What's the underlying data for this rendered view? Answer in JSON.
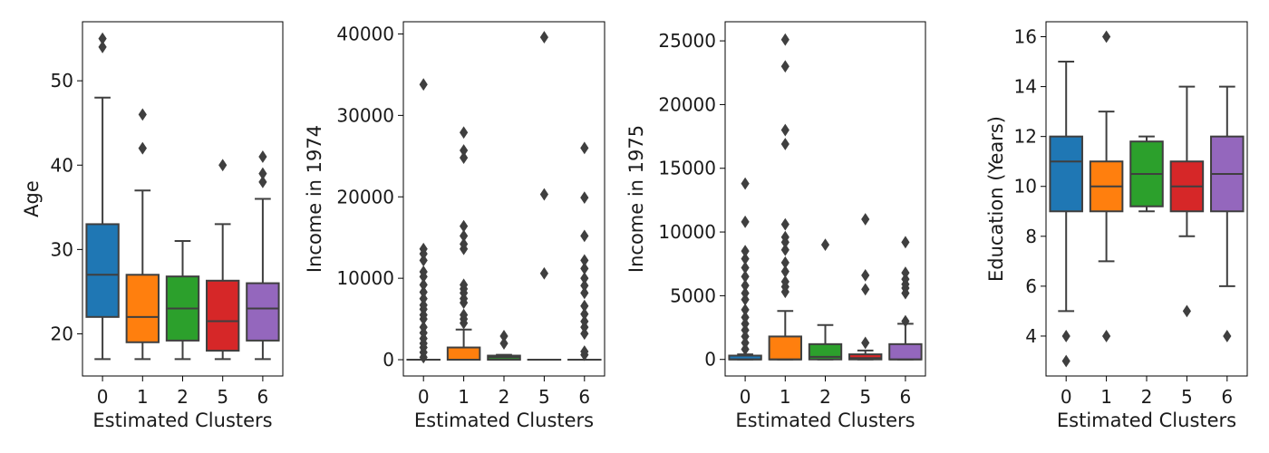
{
  "chart_data": [
    {
      "type": "box",
      "xlabel": "Estimated Clusters",
      "ylabel": "Age",
      "categories": [
        "0",
        "1",
        "2",
        "5",
        "6"
      ],
      "colors": [
        "#1f77b4",
        "#ff7f0e",
        "#2ca02c",
        "#d62728",
        "#9467bd"
      ],
      "ylim": [
        15,
        57
      ],
      "yticks": [
        20,
        30,
        40,
        50
      ],
      "ytick_labels": [
        "20",
        "30",
        "40",
        "50"
      ],
      "boxes": [
        {
          "whislo": 17,
          "q1": 22,
          "med": 27,
          "q3": 33,
          "whishi": 48,
          "fliers": [
            54,
            55
          ]
        },
        {
          "whislo": 17,
          "q1": 19,
          "med": 22,
          "q3": 27,
          "whishi": 37,
          "fliers": [
            42,
            42,
            46
          ]
        },
        {
          "whislo": 17,
          "q1": 19.2,
          "med": 23,
          "q3": 26.8,
          "whishi": 31,
          "fliers": []
        },
        {
          "whislo": 17,
          "q1": 18,
          "med": 21.5,
          "q3": 26.3,
          "whishi": 33,
          "fliers": [
            40
          ]
        },
        {
          "whislo": 17,
          "q1": 19.2,
          "med": 23,
          "q3": 26,
          "whishi": 36,
          "fliers": [
            38,
            39,
            41
          ]
        }
      ]
    },
    {
      "type": "box",
      "xlabel": "Estimated Clusters",
      "ylabel": "Income in 1974",
      "categories": [
        "0",
        "1",
        "2",
        "5",
        "6"
      ],
      "colors": [
        "#1f77b4",
        "#ff7f0e",
        "#2ca02c",
        "#d62728",
        "#9467bd"
      ],
      "ylim": [
        -2000,
        41500
      ],
      "yticks": [
        0,
        10000,
        20000,
        30000,
        40000
      ],
      "ytick_labels": [
        "0",
        "10000",
        "20000",
        "30000",
        "40000"
      ],
      "boxes": [
        {
          "whislo": 0,
          "q1": 0,
          "med": 0,
          "q3": 0,
          "whishi": 0,
          "fliers": [
            300,
            900,
            1500,
            2000,
            2600,
            3300,
            4000,
            5000,
            5500,
            6200,
            6700,
            7500,
            8300,
            9200,
            10200,
            10800,
            12200,
            13000,
            13600,
            33800
          ]
        },
        {
          "whislo": 0,
          "q1": 0,
          "med": 0,
          "q3": 1500,
          "whishi": 3700,
          "fliers": [
            4500,
            5000,
            5500,
            7000,
            7500,
            8200,
            8700,
            9200,
            13600,
            14200,
            15200,
            16400,
            24800,
            25700,
            27900
          ]
        },
        {
          "whislo": 0,
          "q1": 0,
          "med": 300,
          "q3": 500,
          "whishi": 600,
          "fliers": [
            2000,
            2900
          ]
        },
        {
          "whislo": 0,
          "q1": 0,
          "med": 0,
          "q3": 0,
          "whishi": 0,
          "fliers": [
            10600,
            20300,
            39600
          ]
        },
        {
          "whislo": 0,
          "q1": 0,
          "med": 0,
          "q3": 0,
          "whishi": 0,
          "fliers": [
            600,
            1000,
            3200,
            4000,
            4700,
            5600,
            6600,
            8200,
            9100,
            10000,
            11200,
            12200,
            15200,
            19900,
            26000
          ]
        }
      ]
    },
    {
      "type": "box",
      "xlabel": "Estimated Clusters",
      "ylabel": "Income in 1975",
      "categories": [
        "0",
        "1",
        "2",
        "5",
        "6"
      ],
      "colors": [
        "#1f77b4",
        "#ff7f0e",
        "#2ca02c",
        "#d62728",
        "#9467bd"
      ],
      "ylim": [
        -1300,
        26500
      ],
      "yticks": [
        0,
        5000,
        10000,
        15000,
        20000,
        25000
      ],
      "ytick_labels": [
        "0",
        "5000",
        "10000",
        "15000",
        "20000",
        "25000"
      ],
      "boxes": [
        {
          "whislo": 0,
          "q1": 0,
          "med": 0,
          "q3": 300,
          "whishi": 400,
          "fliers": [
            800,
            1300,
            1800,
            2300,
            2800,
            3300,
            3900,
            4700,
            5200,
            5800,
            6500,
            7200,
            7900,
            8500,
            10800,
            13800
          ]
        },
        {
          "whislo": 0,
          "q1": 0,
          "med": 0,
          "q3": 1800,
          "whishi": 3800,
          "fliers": [
            5300,
            5700,
            6100,
            6900,
            7600,
            8600,
            9200,
            9600,
            10600,
            16900,
            18000,
            23000,
            25100
          ]
        },
        {
          "whislo": 0,
          "q1": 0,
          "med": 200,
          "q3": 1200,
          "whishi": 2700,
          "fliers": [
            9000
          ]
        },
        {
          "whislo": 0,
          "q1": 0,
          "med": 100,
          "q3": 400,
          "whishi": 700,
          "fliers": [
            1300,
            5500,
            6600,
            11000
          ]
        },
        {
          "whislo": 0,
          "q1": 0,
          "med": 0,
          "q3": 1200,
          "whishi": 2800,
          "fliers": [
            3000,
            5200,
            5600,
            5900,
            6300,
            6800,
            9200
          ]
        }
      ]
    },
    {
      "type": "box",
      "xlabel": "Estimated Clusters",
      "ylabel": "Education (Years)",
      "categories": [
        "0",
        "1",
        "2",
        "5",
        "6"
      ],
      "colors": [
        "#1f77b4",
        "#ff7f0e",
        "#2ca02c",
        "#d62728",
        "#9467bd"
      ],
      "ylim": [
        2.4,
        16.6
      ],
      "yticks": [
        4,
        6,
        8,
        10,
        12,
        14,
        16
      ],
      "ytick_labels": [
        "4",
        "6",
        "8",
        "10",
        "12",
        "14",
        "16"
      ],
      "boxes": [
        {
          "whislo": 5,
          "q1": 9,
          "med": 11,
          "q3": 12,
          "whishi": 15,
          "fliers": [
            3,
            4
          ]
        },
        {
          "whislo": 7,
          "q1": 9,
          "med": 10,
          "q3": 11,
          "whishi": 13,
          "fliers": [
            4,
            16
          ]
        },
        {
          "whislo": 9,
          "q1": 9.2,
          "med": 10.5,
          "q3": 11.8,
          "whishi": 12,
          "fliers": []
        },
        {
          "whislo": 8,
          "q1": 9,
          "med": 10,
          "q3": 11,
          "whishi": 14,
          "fliers": [
            5
          ]
        },
        {
          "whislo": 6,
          "q1": 9,
          "med": 10.5,
          "q3": 12,
          "whishi": 14,
          "fliers": [
            4
          ]
        }
      ]
    }
  ]
}
